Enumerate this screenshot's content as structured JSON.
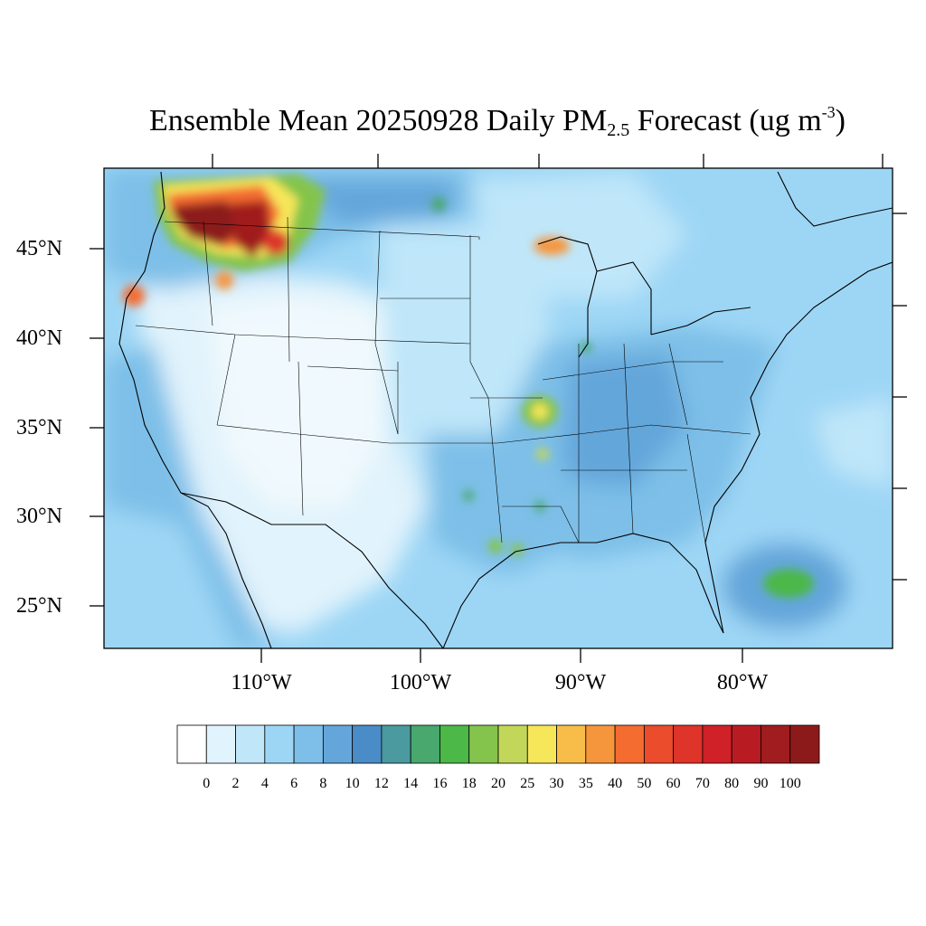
{
  "title": {
    "main": "Ensemble Mean 20250928 Daily PM",
    "sub": "2.5",
    "mid": " Forecast (ug m",
    "sup": "-3",
    "end": ")"
  },
  "axes": {
    "lat_labels": [
      "45°N",
      "40°N",
      "35°N",
      "30°N",
      "25°N"
    ],
    "lon_labels": [
      "110°W",
      "100°W",
      "90°W",
      "80°W"
    ]
  },
  "colorbar": {
    "labels": [
      "0",
      "2",
      "4",
      "6",
      "8",
      "10",
      "12",
      "14",
      "16",
      "18",
      "20",
      "25",
      "30",
      "35",
      "40",
      "50",
      "60",
      "70",
      "80",
      "90",
      "100"
    ],
    "colors": [
      "#ffffff",
      "#e1f3fc",
      "#bfe6f9",
      "#9dd6f5",
      "#7dbfe8",
      "#64a6da",
      "#4a8cc8",
      "#4a9aa0",
      "#48a86e",
      "#4cb848",
      "#84c44c",
      "#c2d65a",
      "#f6e65a",
      "#f8bc48",
      "#f6963c",
      "#f46c30",
      "#ea4c2c",
      "#de342a",
      "#d02028",
      "#b81c22",
      "#a01c1e",
      "#8c1a1a"
    ]
  }
}
